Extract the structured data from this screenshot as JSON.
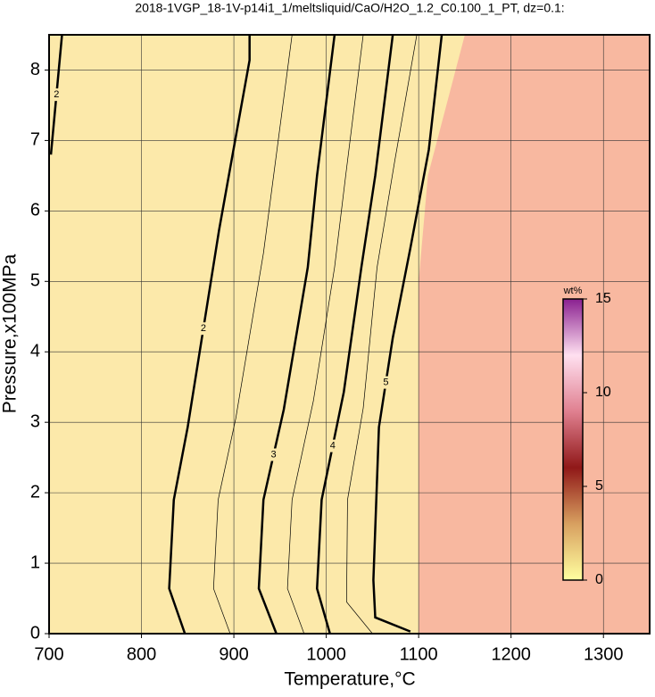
{
  "chart_data": {
    "type": "contour",
    "title": "2018-1VGP_18-1V-p14i1_1/meltsliquid/CaO/H2O_1.2_C0.100_1_PT, dz=0.1:",
    "x_label": "Temperature,°C",
    "y_label": "Pressure,x100MPa",
    "xlim": [
      700,
      1350
    ],
    "ylim": [
      0,
      8.5
    ],
    "xticks": [
      700,
      800,
      900,
      1000,
      1100,
      1200,
      1300
    ],
    "yticks": [
      0,
      1,
      2,
      3,
      4,
      5,
      6,
      7,
      8
    ],
    "grid": true,
    "background_color": "#fce9aa",
    "region": {
      "color": "#f8b8a0",
      "x": [
        1100,
        1100,
        1110,
        1150,
        1350,
        1350
      ],
      "y": [
        0,
        5,
        6.5,
        8.5,
        8.5,
        0
      ]
    },
    "contours": [
      {
        "level": 2,
        "x": [
          702,
          714
        ],
        "y": [
          6.8,
          8.5
        ]
      },
      {
        "level": 2,
        "x": [
          847,
          830,
          835,
          850,
          884,
          903,
          917,
          917
        ],
        "y": [
          0,
          0.64,
          1.9,
          2.93,
          5.73,
          7.12,
          8.14,
          8.5
        ]
      },
      {
        "level": 2.5,
        "x": [
          896,
          878,
          883,
          902,
          932,
          946,
          963
        ],
        "y": [
          0,
          0.64,
          1.9,
          3.05,
          5.4,
          6.8,
          8.5
        ]
      },
      {
        "level": 3,
        "x": [
          946,
          927,
          932,
          954,
          980,
          990,
          1009
        ],
        "y": [
          0,
          0.64,
          1.9,
          3.18,
          5.2,
          6.5,
          8.5
        ]
      },
      {
        "level": 3.5,
        "x": [
          976,
          958,
          963,
          986,
          1009,
          1021,
          1040
        ],
        "y": [
          0,
          0.64,
          1.9,
          3.3,
          5.2,
          6.5,
          8.5
        ]
      },
      {
        "level": 4,
        "x": [
          1004,
          990,
          995,
          1019,
          1038,
          1053,
          1072
        ],
        "y": [
          0,
          0.64,
          1.9,
          3.43,
          5.2,
          6.5,
          8.5
        ]
      },
      {
        "level": 4.5,
        "x": [
          1050,
          1022,
          1023,
          1040,
          1055,
          1074,
          1098
        ],
        "y": [
          0,
          0.45,
          1.9,
          3.2,
          5.2,
          6.7,
          8.5
        ]
      },
      {
        "level": 5,
        "x": [
          1091,
          1053,
          1051,
          1057,
          1072,
          1091,
          1111,
          1125
        ],
        "y": [
          0.03,
          0.23,
          0.76,
          2.93,
          4.2,
          5.47,
          6.87,
          8.5
        ]
      }
    ],
    "colorbar": {
      "label": "wt%",
      "lim": [
        0,
        15
      ],
      "ticks": [
        0,
        5,
        10,
        15
      ],
      "colors": [
        "#ffffa0",
        "#d8a060",
        "#901818",
        "#e08090",
        "#ffe0f0",
        "#8a2090"
      ]
    }
  }
}
